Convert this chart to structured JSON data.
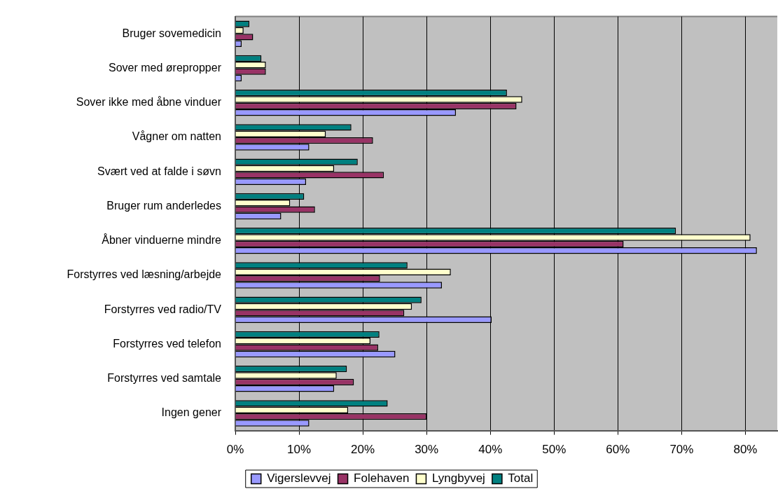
{
  "chart_data": {
    "type": "bar",
    "orientation": "horizontal",
    "categories": [
      "Bruger sovemedicin",
      "Sover med ørepropper",
      "Sover ikke med åbne vinduer",
      "Vågner om natten",
      "Svært ved at falde i søvn",
      "Bruger rum anderledes",
      "Åbner vinduerne mindre",
      "Forstyrres ved læsning/arbejde",
      "Forstyrres ved radio/TV",
      "Forstyrres ved telefon",
      "Forstyrres ved samtale",
      "Ingen gener"
    ],
    "series": [
      {
        "name": "Vigerslevvej",
        "color": "#9999ff",
        "values": [
          1.0,
          1.0,
          34.6,
          11.6,
          11.1,
          7.2,
          81.8,
          32.4,
          40.2,
          25.1,
          15.5,
          11.6
        ]
      },
      {
        "name": "Folehaven",
        "color": "#993366",
        "values": [
          2.8,
          4.8,
          44.1,
          21.6,
          23.3,
          12.5,
          60.9,
          22.7,
          26.5,
          22.4,
          18.6,
          30.0
        ]
      },
      {
        "name": "Lyngbyvej",
        "color": "#ffffcc",
        "values": [
          1.3,
          4.8,
          45.0,
          14.2,
          15.5,
          8.6,
          80.8,
          33.8,
          27.7,
          21.2,
          15.9,
          17.7
        ]
      },
      {
        "name": "Total",
        "color": "#008080",
        "values": [
          2.2,
          4.1,
          42.6,
          18.2,
          19.2,
          10.8,
          69.1,
          27.0,
          29.2,
          22.6,
          17.5,
          23.9
        ]
      }
    ],
    "xlim": [
      0,
      85
    ],
    "xticks": [
      {
        "value": 0,
        "label": "0%"
      },
      {
        "value": 10,
        "label": "10%"
      },
      {
        "value": 20,
        "label": "20%"
      },
      {
        "value": 30,
        "label": "30%"
      },
      {
        "value": 40,
        "label": "40%"
      },
      {
        "value": 50,
        "label": "50%"
      },
      {
        "value": 60,
        "label": "60%"
      },
      {
        "value": 70,
        "label": "70%"
      },
      {
        "value": 80,
        "label": "80%"
      }
    ],
    "grid": "x",
    "legend": "bottom"
  }
}
